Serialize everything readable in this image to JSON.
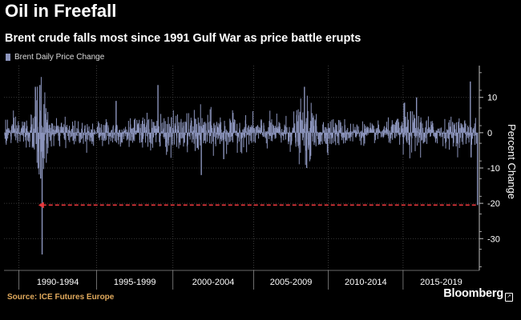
{
  "header": {
    "title": "Oil in Freefall",
    "subtitle": "Brent crude falls most since 1991 Gulf War as price battle erupts"
  },
  "legend": {
    "label": "Brent Daily Price Change",
    "color": "#8c95bd"
  },
  "footer": {
    "source": "Source: ICE Futures Europe",
    "brand": "Bloomberg",
    "brand_icon": "bloomberg-logo-icon"
  },
  "colors": {
    "background": "#000000",
    "series": "#8c95bd",
    "annotation": "#e8383d",
    "grid": "#4a4a4a",
    "text": "#ffffff",
    "source": "#e0a95c"
  },
  "chart_data": {
    "type": "bar",
    "title": "Oil in Freefall",
    "subtitle": "Brent crude falls most since 1991 Gulf War as price battle erupts",
    "ylabel": "Percent Change",
    "xlabel": "",
    "ylim": [
      -39,
      19
    ],
    "xlim": [
      1988.5,
      2020.3
    ],
    "yticks": [
      10,
      0,
      -10,
      -20,
      -30
    ],
    "y_tick_labels": [
      "10",
      "0",
      "-10",
      "-20",
      "-30"
    ],
    "x_categories": [
      "1990-1994",
      "1995-1999",
      "2000-2004",
      "2005-2009",
      "2010-2014",
      "2015-2019"
    ],
    "x_category_bounds": [
      1989.5,
      1994.7,
      1999.8,
      2005.2,
      2010.2,
      2015.2,
      2020.3
    ],
    "series": [
      {
        "name": "Brent Daily Price Change",
        "kind": "daily-percent-change"
      }
    ],
    "volatility_profile": [
      [
        1988.5,
        2.3
      ],
      [
        1989.5,
        2.0
      ],
      [
        1990.4,
        2.6
      ],
      [
        1990.7,
        7.5
      ],
      [
        1991.1,
        6.5
      ],
      [
        1991.5,
        2.2
      ],
      [
        1992.5,
        1.7
      ],
      [
        1994.5,
        1.8
      ],
      [
        1996.0,
        2.0
      ],
      [
        1997.5,
        2.0
      ],
      [
        1998.5,
        2.7
      ],
      [
        2000.0,
        2.6
      ],
      [
        2001.8,
        3.0
      ],
      [
        2003.5,
        2.4
      ],
      [
        2005.0,
        2.1
      ],
      [
        2007.5,
        2.1
      ],
      [
        2008.5,
        4.2
      ],
      [
        2009.1,
        3.8
      ],
      [
        2009.8,
        2.2
      ],
      [
        2011.0,
        1.9
      ],
      [
        2013.5,
        1.2
      ],
      [
        2014.7,
        1.8
      ],
      [
        2015.2,
        3.2
      ],
      [
        2016.3,
        2.8
      ],
      [
        2017.5,
        1.6
      ],
      [
        2018.8,
        2.2
      ],
      [
        2019.7,
        1.9
      ],
      [
        2020.15,
        2.5
      ]
    ],
    "extremes": [
      {
        "x": 1990.6,
        "value": 13.0
      },
      {
        "x": 1990.9,
        "value": 13.5
      },
      {
        "x": 1990.95,
        "value": -13.0
      },
      {
        "x": 1991.05,
        "value": -34.5
      },
      {
        "x": 1996.0,
        "value": 9.0
      },
      {
        "x": 1998.8,
        "value": 13.5
      },
      {
        "x": 2001.7,
        "value": -12.0
      },
      {
        "x": 2003.2,
        "value": -7.5
      },
      {
        "x": 2008.6,
        "value": 13.0
      },
      {
        "x": 2008.75,
        "value": -10.0
      },
      {
        "x": 2015.3,
        "value": 8.5
      },
      {
        "x": 2016.1,
        "value": 10.0
      },
      {
        "x": 2019.7,
        "value": 14.5
      },
      {
        "x": 2019.75,
        "value": -7.0
      },
      {
        "x": 2020.18,
        "value": -20.5
      }
    ],
    "annotation": {
      "type": "dashed-arrow",
      "y": -20.5,
      "x_from": 2020.18,
      "x_to": 1990.8,
      "color": "#e8383d"
    }
  }
}
